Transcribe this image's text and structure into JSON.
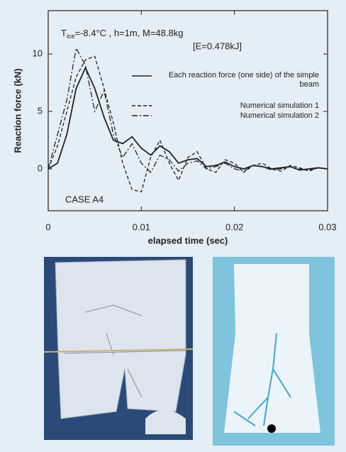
{
  "chart_data": {
    "type": "line",
    "annotations": [
      "T",
      "ice",
      "=-8.4°C , h=1m, M=48.8kg",
      "[E=0.478kJ]",
      "CASE  A4"
    ],
    "x_label": "elapsed time (sec)",
    "y_label": "Reaction force (kN)",
    "x": [
      0,
      0.001,
      0.002,
      0.003,
      0.004,
      0.005,
      0.006,
      0.007,
      0.008,
      0.009,
      0.01,
      0.011,
      0.012,
      0.013,
      0.014,
      0.015,
      0.016,
      0.017,
      0.018,
      0.019,
      0.02,
      0.021,
      0.022,
      0.023,
      0.024,
      0.025,
      0.026,
      0.027,
      0.028,
      0.029,
      0.03
    ],
    "series": [
      {
        "name": "Each reaction force (one side) of the simple beam",
        "color": "#222222",
        "dash": "solid",
        "values": [
          0,
          0.5,
          3,
          7,
          8.8,
          7,
          4.5,
          2.5,
          2.2,
          2.8,
          1.8,
          1.2,
          2,
          1.5,
          0.5,
          0.8,
          0.9,
          0.2,
          0.3,
          0.6,
          0.2,
          0,
          0.3,
          0.2,
          0,
          0.1,
          0.2,
          -0.1,
          0,
          0.1,
          0
        ]
      },
      {
        "name": "Numerical simulation 1",
        "color": "#222222",
        "dash": "dashed",
        "values": [
          0,
          2,
          5,
          8,
          9.5,
          9.8,
          7,
          4,
          0.5,
          -1.8,
          -2,
          1,
          2.5,
          0.5,
          -1,
          1,
          1.5,
          0,
          -0.3,
          0.8,
          0.5,
          -0.3,
          0.3,
          0.5,
          0,
          -0.2,
          0.3,
          0.1,
          -0.2,
          0.1,
          0
        ]
      },
      {
        "name": "Numerical simulation 2",
        "color": "#222222",
        "dash": "dashdot",
        "values": [
          0,
          3,
          6,
          10.5,
          9,
          5,
          6.8,
          3,
          1,
          2.2,
          0.5,
          -0.3,
          1.2,
          0.8,
          -0.2,
          0.5,
          0.7,
          0,
          0.2,
          0.5,
          0,
          -0.2,
          0.3,
          0.2,
          -0.1,
          0,
          0.2,
          0,
          -0.1,
          0.1,
          0
        ]
      }
    ],
    "xlim": [
      0,
      0.03
    ],
    "xticks": [
      0,
      0.01,
      0.02,
      0.03
    ],
    "ylim": [
      -3.64,
      13.77
    ],
    "yticks": [
      0,
      5,
      10
    ]
  }
}
